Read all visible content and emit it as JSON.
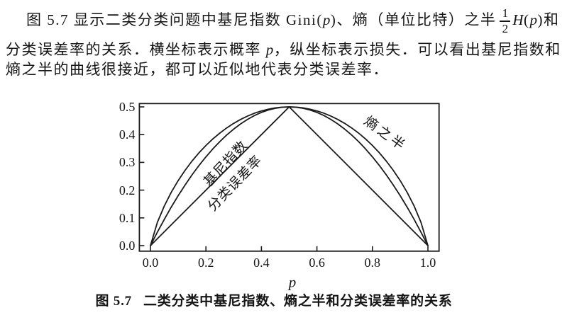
{
  "paragraph": {
    "line1": {
      "s1": "图 5.7 显示二类分类问题中基尼指数 Gini(",
      "p1": "p",
      "s2": ")、熵（单位比特）之半",
      "frac_num": "1",
      "frac_den": "2",
      "h": "H",
      "lp": "(",
      "p2": "p",
      "rp": ")",
      "s3": "和"
    },
    "line2": {
      "s1": "分类误差率的关系．横坐标表示概率 ",
      "p": "p",
      "s2": "，纵坐标表示损失．可以看出基尼指数和"
    },
    "line3": {
      "s1": "熵之半的曲线很接近，都可以近似地代表分类误差率．"
    }
  },
  "figure": {
    "caption_prefix": "图 5.7",
    "caption_text": "二类分类中基尼指数、熵之半和分类误差率的关系"
  },
  "chart_data": {
    "type": "line",
    "title": "",
    "xlabel": "p",
    "ylabel": "",
    "grid": false,
    "legend_position": "inline-rotated-labels",
    "line_color": "#1a1a1a",
    "xlim": [
      -0.04,
      1.04
    ],
    "ylim": [
      -0.02,
      0.512
    ],
    "x_ticks": [
      "0.0",
      "0.2",
      "0.4",
      "0.6",
      "0.8",
      "1.0"
    ],
    "y_ticks": [
      "0.0",
      "0.1",
      "0.2",
      "0.3",
      "0.4",
      "0.5"
    ],
    "x": [
      0,
      0.025,
      0.05,
      0.075,
      0.1,
      0.125,
      0.15,
      0.175,
      0.2,
      0.225,
      0.25,
      0.275,
      0.3,
      0.325,
      0.35,
      0.375,
      0.4,
      0.425,
      0.45,
      0.475,
      0.5,
      0.525,
      0.55,
      0.575,
      0.6,
      0.625,
      0.65,
      0.675,
      0.7,
      0.725,
      0.75,
      0.775,
      0.8,
      0.825,
      0.85,
      0.875,
      0.9,
      0.925,
      0.95,
      0.975,
      1
    ],
    "series": [
      {
        "name": "gini",
        "label_text": "基尼指数",
        "formula": "Gini(p) = 2p(1-p)",
        "y": [
          0,
          0.0488,
          0.095,
          0.1388,
          0.18,
          0.2188,
          0.255,
          0.2888,
          0.32,
          0.3488,
          0.375,
          0.3988,
          0.42,
          0.4388,
          0.455,
          0.4688,
          0.48,
          0.4888,
          0.495,
          0.4988,
          0.5,
          0.4988,
          0.495,
          0.4888,
          0.48,
          0.4688,
          0.455,
          0.4388,
          0.42,
          0.3988,
          0.375,
          0.3488,
          0.32,
          0.2888,
          0.255,
          0.2188,
          0.18,
          0.1388,
          0.095,
          0.0488,
          0
        ]
      },
      {
        "name": "error-rate",
        "label_text": "分类误差率",
        "formula": "min(p, 1-p)",
        "x": [
          0,
          0.5,
          1
        ],
        "y": [
          0,
          0.5,
          0
        ]
      },
      {
        "name": "half-entropy",
        "label_text": "熵之半",
        "formula": "H(p)/2 = -(p·log2(p)+(1-p)·log2(1-p))/2",
        "y": [
          0,
          0.0843,
          0.1432,
          0.1922,
          0.2345,
          0.2718,
          0.3049,
          0.3345,
          0.361,
          0.3846,
          0.4056,
          0.4243,
          0.4406,
          0.4549,
          0.467,
          0.4772,
          0.4855,
          0.4919,
          0.4964,
          0.4991,
          0.5,
          0.4991,
          0.4964,
          0.4919,
          0.4855,
          0.4772,
          0.467,
          0.4549,
          0.4406,
          0.4243,
          0.4056,
          0.3846,
          0.361,
          0.3345,
          0.3049,
          0.2718,
          0.2345,
          0.1922,
          0.1432,
          0.0843,
          0
        ]
      }
    ]
  }
}
